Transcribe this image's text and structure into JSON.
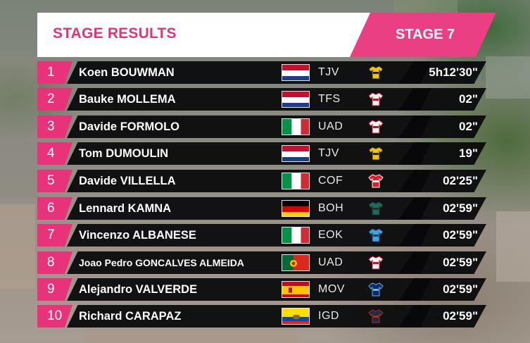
{
  "header": {
    "title": "STAGE RESULTS",
    "stage_label": "STAGE 7"
  },
  "colors": {
    "accent_pink": "#e8327a",
    "header_pink": "#ea3f82",
    "row_bg": "#08080a"
  },
  "results": [
    {
      "rank": "1",
      "name": "Koen BOUWMAN",
      "flag": "netherlands",
      "team": "TJV",
      "jersey": "jumbo-visma-jersey-icon",
      "time": "5h12'30\""
    },
    {
      "rank": "2",
      "name": "Bauke MOLLEMA",
      "flag": "netherlands",
      "team": "TFS",
      "jersey": "trek-segafredo-jersey-icon",
      "time": "02\""
    },
    {
      "rank": "3",
      "name": "Davide FORMOLO",
      "flag": "italy",
      "team": "UAD",
      "jersey": "uae-team-jersey-icon",
      "time": "02\""
    },
    {
      "rank": "4",
      "name": "Tom DUMOULIN",
      "flag": "netherlands",
      "team": "TJV",
      "jersey": "jumbo-visma-jersey-icon",
      "time": "19\""
    },
    {
      "rank": "5",
      "name": "Davide VILLELLA",
      "flag": "italy",
      "team": "COF",
      "jersey": "cofidis-jersey-icon",
      "time": "02'25\""
    },
    {
      "rank": "6",
      "name": "Lennard KAMNA",
      "flag": "germany",
      "team": "BOH",
      "jersey": "bora-hansgrohe-jersey-icon",
      "time": "02'59\""
    },
    {
      "rank": "7",
      "name": "Vincenzo ALBANESE",
      "flag": "italy",
      "team": "EOK",
      "jersey": "eolo-kometa-jersey-icon",
      "time": "02'59\""
    },
    {
      "rank": "8",
      "name": "Joao Pedro GONCALVES ALMEIDA",
      "flag": "portugal",
      "team": "UAD",
      "jersey": "uae-team-jersey-icon",
      "time": "02'59\""
    },
    {
      "rank": "9",
      "name": "Alejandro VALVERDE",
      "flag": "spain",
      "team": "MOV",
      "jersey": "movistar-jersey-icon",
      "time": "02'59\""
    },
    {
      "rank": "10",
      "name": "Richard CARAPAZ",
      "flag": "ecuador",
      "team": "IGD",
      "jersey": "ineos-grenadiers-jersey-icon",
      "time": "02'59\""
    }
  ]
}
